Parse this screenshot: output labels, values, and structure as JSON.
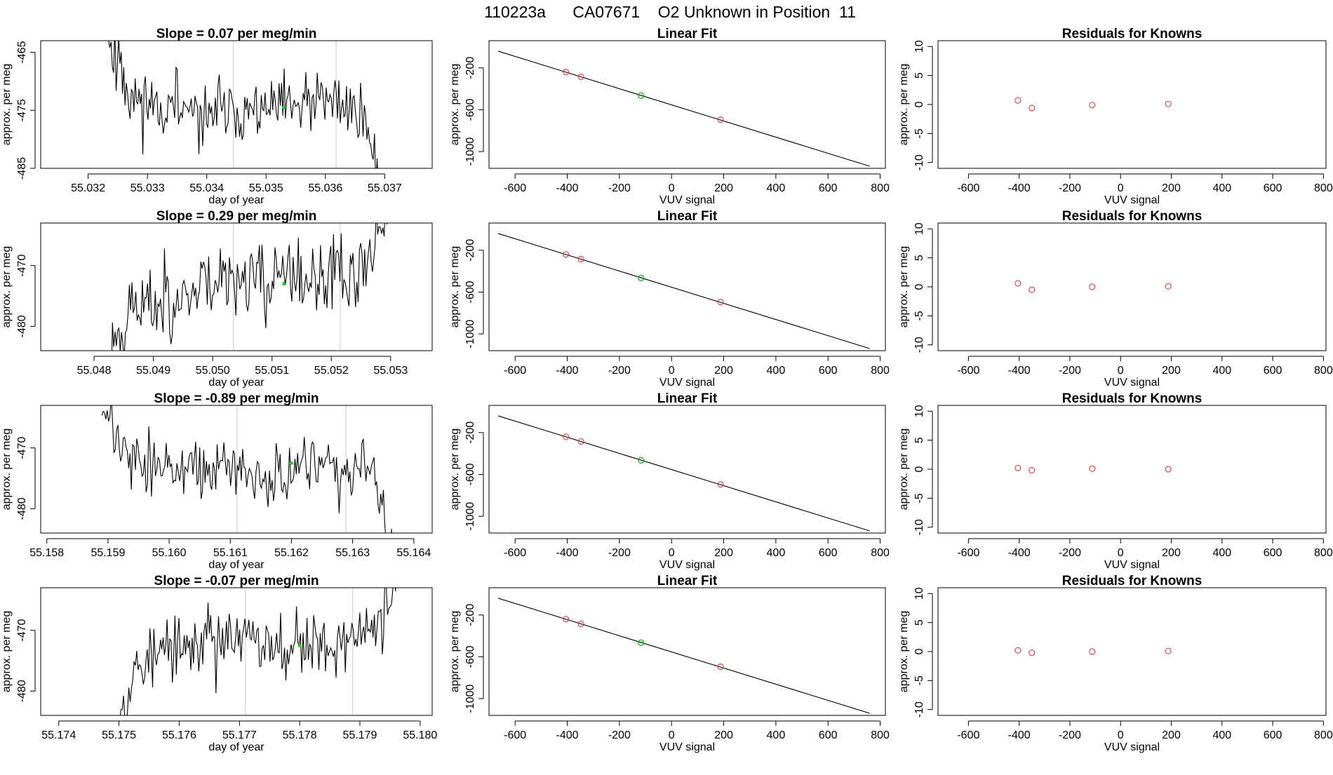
{
  "figure": {
    "title": "110223a      CA07671    O2 Unknown in Position  11"
  },
  "chart_data": [
    {
      "type": "line",
      "panel": "drift",
      "row": 1,
      "title": "Slope =  0.07  per meg/min",
      "xlabel": "day of year",
      "ylabel": "approx. per meg",
      "xlim": [
        55.0312,
        55.0378
      ],
      "ylim": [
        -485,
        -463
      ],
      "xticks": [
        55.032,
        55.033,
        55.034,
        55.035,
        55.036,
        55.037
      ],
      "xtick_labels": [
        "55.032",
        "55.033",
        "55.034",
        "55.035",
        "55.036",
        "55.037"
      ],
      "yticks": [
        -465,
        -475,
        -485
      ],
      "ytick_labels": [
        "-465",
        "-475",
        "-485"
      ],
      "x_start": 55.0323,
      "x_end": 55.037,
      "seed": 11,
      "levels": [
        -461,
        -472,
        -473.5,
        -475,
        -476,
        -475.2,
        -474.8,
        -475,
        -474.6,
        -474,
        -473.5,
        -475,
        -490
      ],
      "noise_amp": 2.6,
      "vlines": [
        55.03445,
        55.03618
      ],
      "green_point": {
        "x": 55.0353,
        "y": -474.5
      }
    },
    {
      "type": "line",
      "panel": "drift",
      "row": 2,
      "title": "Slope =  0.29  per meg/min",
      "xlabel": "day of year",
      "ylabel": "approx. per meg",
      "xlim": [
        55.0471,
        55.0537
      ],
      "ylim": [
        -484,
        -463
      ],
      "xticks": [
        55.048,
        55.049,
        55.05,
        55.051,
        55.052,
        55.053
      ],
      "xtick_labels": [
        "55.048",
        "55.049",
        "55.050",
        "55.051",
        "55.052",
        "55.053"
      ],
      "yticks": [
        -470,
        -480
      ],
      "ytick_labels": [
        "-470",
        "-480"
      ],
      "x_start": 55.0482,
      "x_end": 55.053,
      "seed": 23,
      "levels": [
        -486,
        -477,
        -476,
        -475,
        -473,
        -471.5,
        -472.5,
        -473,
        -472,
        -473,
        -472,
        -471,
        -460
      ],
      "noise_amp": 3.0,
      "vlines": [
        55.05035,
        55.05215
      ],
      "green_point": {
        "x": 55.0512,
        "y": -473
      }
    },
    {
      "type": "line",
      "panel": "drift",
      "row": 3,
      "title": "Slope =  -0.89  per meg/min",
      "xlabel": "day of year",
      "ylabel": "approx. per meg",
      "xlim": [
        55.1579,
        55.1643
      ],
      "ylim": [
        -484,
        -463
      ],
      "xticks": [
        55.158,
        55.159,
        55.16,
        55.161,
        55.162,
        55.163,
        55.164
      ],
      "xtick_labels": [
        "55.158",
        "55.159",
        "55.160",
        "55.161",
        "55.162",
        "55.163",
        "55.164"
      ],
      "yticks": [
        -470,
        -480
      ],
      "ytick_labels": [
        "-470",
        "-480"
      ],
      "x_start": 55.1589,
      "x_end": 55.1637,
      "seed": 37,
      "levels": [
        -463,
        -472,
        -473,
        -474,
        -474.5,
        -473.5,
        -474,
        -474.5,
        -474,
        -473.5,
        -474,
        -473,
        -490
      ],
      "noise_amp": 2.2,
      "vlines": [
        55.16111,
        55.16289
      ],
      "green_point": {
        "x": 55.162,
        "y": -472.5
      }
    },
    {
      "type": "line",
      "panel": "drift",
      "row": 4,
      "title": "Slope =  -0.07  per meg/min",
      "xlabel": "day of year",
      "ylabel": "approx. per meg",
      "xlim": [
        55.1737,
        55.1802
      ],
      "ylim": [
        -484,
        -463
      ],
      "xticks": [
        55.174,
        55.175,
        55.176,
        55.177,
        55.178,
        55.179,
        55.18
      ],
      "xtick_labels": [
        "55.174",
        "55.175",
        "55.176",
        "55.177",
        "55.178",
        "55.179",
        "55.180"
      ],
      "yticks": [
        -470,
        -480
      ],
      "ytick_labels": [
        "-470",
        "-480"
      ],
      "x_start": 55.1749,
      "x_end": 55.1797,
      "seed": 53,
      "levels": [
        -488,
        -476,
        -474,
        -472,
        -471.5,
        -471,
        -472,
        -472.5,
        -472,
        -472.5,
        -471,
        -470,
        -460
      ],
      "noise_amp": 2.5,
      "vlines": [
        55.1771,
        55.17888
      ],
      "green_point": {
        "x": 55.178,
        "y": -472.5
      }
    },
    {
      "type": "scatter",
      "panel": "fit",
      "row": 1,
      "title": "Linear Fit",
      "xlabel": "VUV signal",
      "ylabel": "approx. per meg",
      "xlim": [
        -700,
        820
      ],
      "ylim": [
        -1160,
        60
      ],
      "xticks": [
        -600,
        -400,
        -200,
        0,
        200,
        400,
        600,
        800
      ],
      "yticks": [
        -200,
        -600,
        -1000
      ],
      "fit_line": {
        "x": [
          -665,
          760
        ],
        "y": [
          -40,
          -1140
        ]
      },
      "known_points": {
        "x": [
          -405,
          -347,
          188
        ],
        "y": [
          -240,
          -285,
          -695
        ]
      },
      "unknown_point": {
        "x": -117,
        "y": -465
      }
    },
    {
      "type": "scatter",
      "panel": "fit",
      "row": 2,
      "title": "Linear Fit",
      "xlabel": "VUV signal",
      "ylabel": "approx. per meg",
      "xlim": [
        -700,
        820
      ],
      "ylim": [
        -1160,
        60
      ],
      "xticks": [
        -600,
        -400,
        -200,
        0,
        200,
        400,
        600,
        800
      ],
      "yticks": [
        -200,
        -600,
        -1000
      ],
      "fit_line": {
        "x": [
          -665,
          760
        ],
        "y": [
          -40,
          -1140
        ]
      },
      "known_points": {
        "x": [
          -405,
          -347,
          188
        ],
        "y": [
          -240,
          -285,
          -695
        ]
      },
      "unknown_point": {
        "x": -117,
        "y": -465
      }
    },
    {
      "type": "scatter",
      "panel": "fit",
      "row": 3,
      "title": "Linear Fit",
      "xlabel": "VUV signal",
      "ylabel": "approx. per meg",
      "xlim": [
        -700,
        820
      ],
      "ylim": [
        -1160,
        60
      ],
      "xticks": [
        -600,
        -400,
        -200,
        0,
        200,
        400,
        600,
        800
      ],
      "yticks": [
        -200,
        -600,
        -1000
      ],
      "fit_line": {
        "x": [
          -665,
          760
        ],
        "y": [
          -40,
          -1140
        ]
      },
      "known_points": {
        "x": [
          -405,
          -347,
          188
        ],
        "y": [
          -240,
          -285,
          -695
        ]
      },
      "unknown_point": {
        "x": -117,
        "y": -465
      }
    },
    {
      "type": "scatter",
      "panel": "fit",
      "row": 4,
      "title": "Linear Fit",
      "xlabel": "VUV signal",
      "ylabel": "approx. per meg",
      "xlim": [
        -700,
        820
      ],
      "ylim": [
        -1160,
        60
      ],
      "xticks": [
        -600,
        -400,
        -200,
        0,
        200,
        400,
        600,
        800
      ],
      "yticks": [
        -200,
        -600,
        -1000
      ],
      "fit_line": {
        "x": [
          -665,
          760
        ],
        "y": [
          -40,
          -1140
        ]
      },
      "known_points": {
        "x": [
          -405,
          -347,
          188
        ],
        "y": [
          -240,
          -285,
          -695
        ]
      },
      "unknown_point": {
        "x": -117,
        "y": -465
      }
    },
    {
      "type": "scatter",
      "panel": "residuals",
      "row": 1,
      "title": "Residuals for Knowns",
      "xlabel": "VUV signal",
      "ylabel": "approx. per meg",
      "xlim": [
        -720,
        810
      ],
      "ylim": [
        -11,
        11
      ],
      "xticks": [
        -600,
        -400,
        -200,
        0,
        200,
        400,
        600,
        800
      ],
      "yticks": [
        10,
        5,
        0,
        -5,
        -10
      ],
      "points": {
        "x": [
          -405,
          -350,
          -112,
          188
        ],
        "y": [
          0.7,
          -0.6,
          -0.1,
          0.1
        ]
      }
    },
    {
      "type": "scatter",
      "panel": "residuals",
      "row": 2,
      "title": "Residuals for Knowns",
      "xlabel": "VUV signal",
      "ylabel": "approx. per meg",
      "xlim": [
        -720,
        810
      ],
      "ylim": [
        -11,
        11
      ],
      "xticks": [
        -600,
        -400,
        -200,
        0,
        200,
        400,
        600,
        800
      ],
      "yticks": [
        10,
        5,
        0,
        -5,
        -10
      ],
      "points": {
        "x": [
          -405,
          -350,
          -112,
          188
        ],
        "y": [
          0.6,
          -0.5,
          0.0,
          0.1
        ]
      }
    },
    {
      "type": "scatter",
      "panel": "residuals",
      "row": 3,
      "title": "Residuals for Knowns",
      "xlabel": "VUV signal",
      "ylabel": "approx. per meg",
      "xlim": [
        -720,
        810
      ],
      "ylim": [
        -11,
        11
      ],
      "xticks": [
        -600,
        -400,
        -200,
        0,
        200,
        400,
        600,
        800
      ],
      "yticks": [
        10,
        5,
        0,
        -5,
        -10
      ],
      "points": {
        "x": [
          -405,
          -350,
          -112,
          188
        ],
        "y": [
          0.2,
          -0.2,
          0.1,
          0.0
        ]
      }
    },
    {
      "type": "scatter",
      "panel": "residuals",
      "row": 4,
      "title": "Residuals for Knowns",
      "xlabel": "VUV signal",
      "ylabel": "approx. per meg",
      "xlim": [
        -720,
        810
      ],
      "ylim": [
        -11,
        11
      ],
      "xticks": [
        -600,
        -400,
        -200,
        0,
        200,
        400,
        600,
        800
      ],
      "yticks": [
        10,
        5,
        0,
        -5,
        -10
      ],
      "points": {
        "x": [
          -405,
          -350,
          -112,
          188
        ],
        "y": [
          0.2,
          -0.2,
          0.0,
          0.1
        ]
      }
    }
  ],
  "colors": {
    "line": "#000000",
    "known_point": "#d94c4c",
    "unknown_point": "#22bb22",
    "green_marker": "#22cc22",
    "vline": "#c8c8c8",
    "axis": "#000000"
  }
}
